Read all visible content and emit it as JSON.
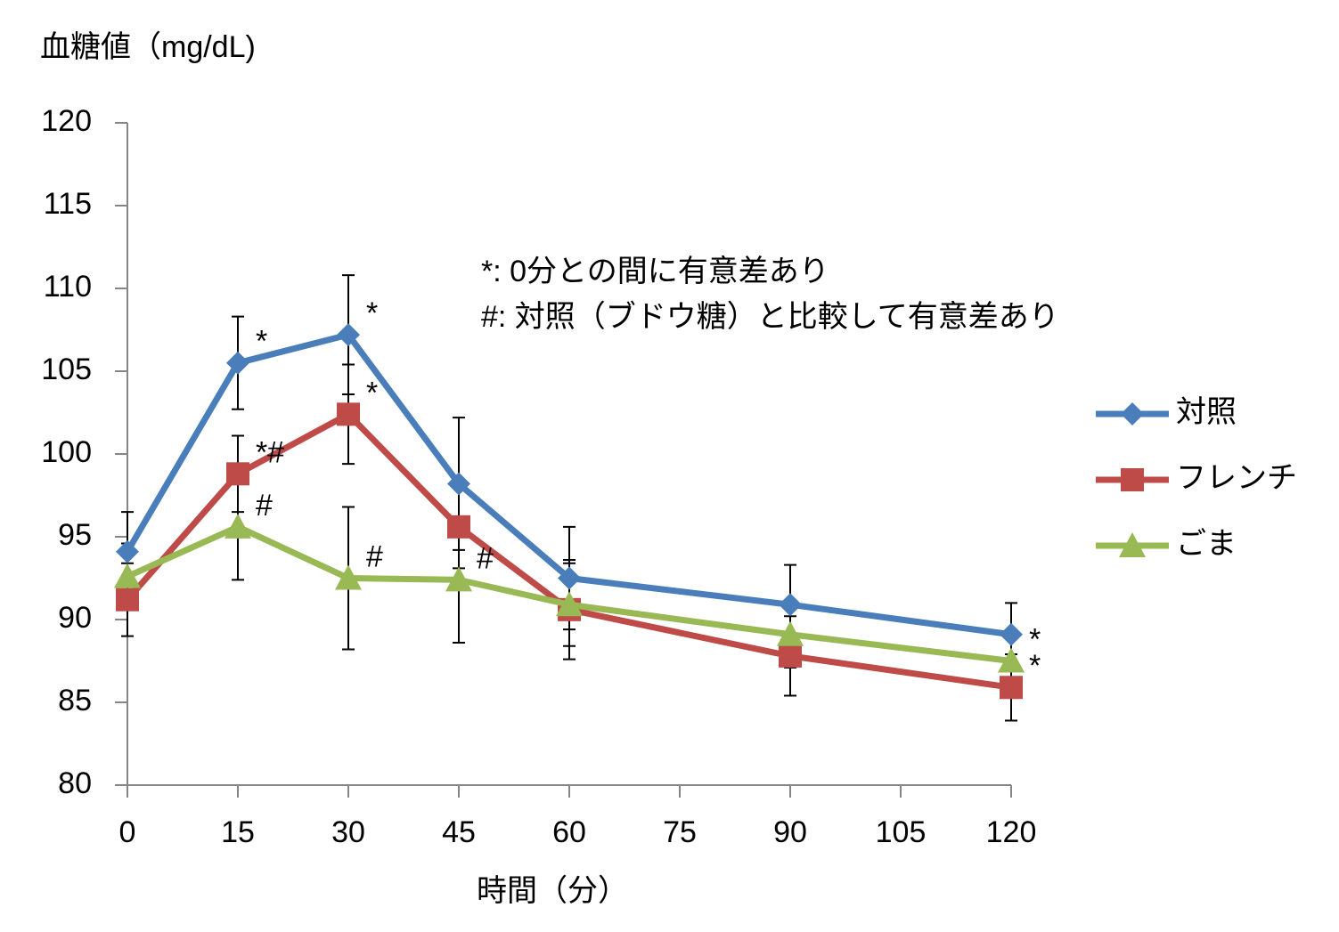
{
  "chart_data": {
    "type": "line",
    "y_label": "血糖値（mg/dL)",
    "x_label": "時間（分）",
    "notes": [
      "*: 0分との間に有意差あり",
      "#: 対照（ブドウ糖）と比較して有意差あり"
    ],
    "x": [
      0,
      15,
      30,
      45,
      60,
      90,
      120
    ],
    "xlim": [
      0,
      120
    ],
    "xticks": [
      0,
      15,
      30,
      45,
      60,
      75,
      90,
      105,
      120
    ],
    "ylim": [
      80,
      120
    ],
    "yticks": [
      80,
      85,
      90,
      95,
      100,
      105,
      110,
      115,
      120
    ],
    "legend": "right",
    "series": [
      {
        "name": "対照",
        "color": "#4a7ebb",
        "marker": "diamond",
        "values": [
          94.1,
          105.5,
          107.2,
          98.2,
          92.5,
          90.9,
          89.1
        ],
        "errors": [
          2.4,
          2.8,
          3.6,
          4.0,
          3.1,
          2.4,
          1.9
        ],
        "sig_labels": [
          null,
          "*",
          "*",
          null,
          null,
          null,
          null
        ]
      },
      {
        "name": "フレンチ",
        "color": "#be4b48",
        "marker": "square",
        "values": [
          91.2,
          98.8,
          102.4,
          95.6,
          90.6,
          87.8,
          85.9
        ],
        "errors": [
          2.2,
          2.3,
          3.0,
          2.5,
          3.0,
          2.4,
          2.0
        ],
        "sig_labels": [
          null,
          "*#",
          "*",
          null,
          null,
          null,
          "*"
        ]
      },
      {
        "name": "ごま",
        "color": "#98b954",
        "marker": "triangle",
        "values": [
          92.6,
          95.6,
          92.5,
          92.4,
          90.9,
          89.1,
          87.5
        ],
        "errors": [
          2.0,
          3.2,
          4.3,
          3.8,
          2.5,
          2.0,
          1.5
        ],
        "sig_labels": [
          null,
          "#",
          "#",
          "#",
          null,
          null,
          "*"
        ]
      }
    ]
  }
}
